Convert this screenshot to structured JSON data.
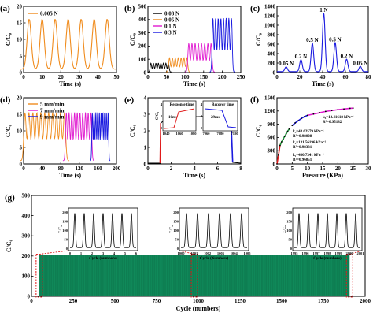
{
  "chart_data": [
    {
      "id": "a",
      "type": "line",
      "panel_letter": "(a)",
      "ylabel": "C/C₀",
      "xlabel": "Time (s)",
      "xlim": [
        0,
        50
      ],
      "ylim": [
        0,
        20
      ],
      "xticks": [
        "0",
        "10",
        "20",
        "30",
        "40",
        "50"
      ],
      "yticks": [
        "0",
        "5",
        "10",
        "15",
        "20"
      ],
      "legend": [
        {
          "label": "0.005 N",
          "color": "#f08c1e"
        }
      ],
      "series": [
        {
          "name": "0.005 N",
          "color": "#f08c1e",
          "peak_times": [
            3,
            10,
            17,
            24,
            31,
            38,
            45
          ],
          "peak_value": 16.2,
          "baseline": 1
        }
      ]
    },
    {
      "id": "b",
      "type": "line",
      "panel_letter": "(b)",
      "ylabel": "C/C₀",
      "xlabel": "Time (s)",
      "xlim": [
        0,
        250
      ],
      "ylim": [
        0,
        500
      ],
      "xticks": [
        "0",
        "50",
        "100",
        "150",
        "200",
        "250"
      ],
      "yticks": [
        "0",
        "100",
        "200",
        "300",
        "400",
        "500"
      ],
      "legend": [
        {
          "label": "0.03 N",
          "color": "#000000"
        },
        {
          "label": "0.05 N",
          "color": "#f08c1e"
        },
        {
          "label": "0.1 N",
          "color": "#e01ad0"
        },
        {
          "label": "0.3 N",
          "color": "#1a1ae0"
        }
      ],
      "series": [
        {
          "name": "0.03 N",
          "color": "#000000",
          "start": 8,
          "end": 55,
          "count": 8,
          "peak_value": 70,
          "baseline": 5
        },
        {
          "name": "0.05 N",
          "color": "#f08c1e",
          "start": 58,
          "end": 105,
          "count": 7,
          "peak_value": 110,
          "baseline": 5
        },
        {
          "name": "0.1 N",
          "color": "#e01ad0",
          "start": 110,
          "end": 170,
          "count": 8,
          "peak_value": 220,
          "baseline": 5
        },
        {
          "name": "0.3 N",
          "color": "#1a1ae0",
          "start": 175,
          "end": 225,
          "count": 8,
          "peak_value": 410,
          "baseline": 5
        }
      ]
    },
    {
      "id": "c",
      "type": "line",
      "panel_letter": "(c)",
      "ylabel": "C/C₀",
      "xlabel": "Time (s)",
      "xlim": [
        0,
        80
      ],
      "ylim": [
        0,
        1400
      ],
      "xticks": [
        "0",
        "20",
        "40",
        "60",
        "80"
      ],
      "yticks": [
        "0",
        "200",
        "400",
        "600",
        "800",
        "1000",
        "1200",
        "1400"
      ],
      "color": "#1a1ae0",
      "peaks": [
        {
          "t": 8,
          "v": 100,
          "label": "0.05 N"
        },
        {
          "t": 21,
          "v": 250,
          "label": "0.2 N"
        },
        {
          "t": 31,
          "v": 600,
          "label": "0.5 N"
        },
        {
          "t": 41,
          "v": 1230,
          "label": "1 N"
        },
        {
          "t": 51,
          "v": 610,
          "label": "0.5 N"
        },
        {
          "t": 61,
          "v": 260,
          "label": "0.2 N"
        },
        {
          "t": 73,
          "v": 110,
          "label": "0.05 N"
        }
      ]
    },
    {
      "id": "d",
      "type": "line",
      "panel_letter": "(d)",
      "ylabel": "C/C₀",
      "xlabel": "Time (s)",
      "xlim": [
        0,
        200
      ],
      "ylim": [
        0,
        20
      ],
      "xticks": [
        "0",
        "40",
        "80",
        "120",
        "160",
        "200"
      ],
      "yticks": [
        "0",
        "5",
        "10",
        "15",
        "20"
      ],
      "legend": [
        {
          "label": "5 mm/min",
          "color": "#f08c1e"
        },
        {
          "label": "7 mm/min",
          "color": "#e01ad0"
        },
        {
          "label": "9 mm/min",
          "color": "#1a1ae0"
        }
      ],
      "series": [
        {
          "name": "5 mm/min",
          "color": "#f08c1e",
          "start": 3,
          "end": 88,
          "count": 11,
          "peak_value": 15.5,
          "baseline": 1
        },
        {
          "name": "7 mm/min",
          "color": "#e01ad0",
          "start": 92,
          "end": 145,
          "count": 10,
          "peak_value": 15.5,
          "baseline": 1
        },
        {
          "name": "9 mm/min",
          "color": "#1a1ae0",
          "start": 148,
          "end": 182,
          "count": 10,
          "peak_value": 15.5,
          "baseline": 1
        }
      ]
    },
    {
      "id": "e",
      "type": "line",
      "panel_letter": "(e)",
      "ylabel": "C/C₀",
      "xlabel": "Time (s)",
      "xlim": [
        0,
        8
      ],
      "ylim": [
        0,
        4
      ],
      "xticks": [
        "0",
        "2",
        "4",
        "6",
        "8"
      ],
      "yticks": [
        "0",
        "1",
        "2",
        "3",
        "4"
      ],
      "step": {
        "t_on": 1.1,
        "t_off": 7.2,
        "low": 0,
        "high": 2.9
      },
      "insets": [
        {
          "title": "Response time",
          "time_label": "10ms",
          "xticks": [
            "1040",
            "1060",
            "1080"
          ],
          "ylabel": "C/C₀",
          "yticks": [
            "0",
            "2",
            "4"
          ]
        },
        {
          "title": "Recover time",
          "time_label": "29ms",
          "xticks": [
            "7060",
            "7080",
            "7100"
          ],
          "yticks": [
            "0",
            "2",
            "4"
          ]
        }
      ]
    },
    {
      "id": "f",
      "type": "scatter",
      "panel_letter": "(f)",
      "ylabel": "C/C₀",
      "xlabel": "Pressure (KPa)",
      "xlim": [
        0,
        30
      ],
      "ylim": [
        0,
        1500
      ],
      "xticks": [
        "0",
        "5",
        "10",
        "15",
        "20",
        "25",
        "30"
      ],
      "yticks": [
        "0",
        "300",
        "600",
        "900",
        "1200",
        "1500"
      ],
      "fits": [
        {
          "k": "k₁=480.7341 kPa⁻¹",
          "r2": "R²=0.96851",
          "color": "#e01a1a",
          "x_range": [
            0.2,
            1.2
          ]
        },
        {
          "k": "k₂=131.56196 kPa⁻¹",
          "r2": "R²=0.98331",
          "color": "#20a040",
          "x_range": [
            1.2,
            4.5
          ]
        },
        {
          "k": "k₃=43.62579 kPa⁻¹",
          "r2": "R²=0.98008",
          "color": "#1a1ae0",
          "x_range": [
            4.5,
            10
          ]
        },
        {
          "k": "k₄=12.41618 kPa⁻¹",
          "r2": "R²=0.95182",
          "color": "#e01ad0",
          "x_range": [
            10,
            25
          ]
        }
      ],
      "points_x": [
        0,
        0.5,
        1,
        1.5,
        2,
        2.5,
        3,
        3.5,
        4,
        5,
        6,
        7,
        8,
        9,
        10,
        12,
        14,
        16,
        18,
        20,
        22,
        24,
        25
      ],
      "points_y": [
        0,
        200,
        420,
        500,
        560,
        620,
        680,
        740,
        790,
        870,
        930,
        980,
        1030,
        1070,
        1100,
        1130,
        1160,
        1190,
        1210,
        1230,
        1245,
        1260,
        1265
      ]
    },
    {
      "id": "g",
      "type": "area",
      "panel_letter": "(g)",
      "ylabel": "C/C₀",
      "xlabel": "Cycle (numbers)",
      "xlim": [
        -50,
        2100
      ],
      "ylim": [
        0,
        500
      ],
      "xticks": [
        "0",
        "250",
        "500",
        "750",
        "1000",
        "1250",
        "1500",
        "1750",
        "2000"
      ],
      "yticks": [
        "0",
        "100",
        "200",
        "300",
        "400",
        "500"
      ],
      "band": {
        "color": "#108a5a",
        "low": 0,
        "high": 205,
        "x_start": 0,
        "x_end": 2000
      },
      "highlight_x": [
        0,
        1000,
        2000
      ],
      "insets": [
        {
          "xlabel": "Cycle (numbers)",
          "ylabel": "C/C₀",
          "xticks": [
            "0",
            "1",
            "2",
            "3",
            "4",
            "5",
            "6"
          ],
          "yticks": [
            "0",
            "50",
            "100",
            "150",
            "200"
          ]
        },
        {
          "xlabel": "Cycle (Numbers)",
          "ylabel": "C/C₀",
          "xticks": [
            "1000",
            "1001",
            "1002",
            "1003",
            "1004",
            "1005"
          ],
          "yticks": [
            "0",
            "50",
            "100",
            "150",
            "200"
          ]
        },
        {
          "xlabel": "Cycle (numbers)",
          "ylabel": "C/C₀",
          "xticks": [
            "1995",
            "1996",
            "1997",
            "1998",
            "1999",
            "2000",
            "2001"
          ],
          "yticks": [
            "0",
            "50",
            "100",
            "150",
            "200"
          ]
        }
      ]
    }
  ]
}
